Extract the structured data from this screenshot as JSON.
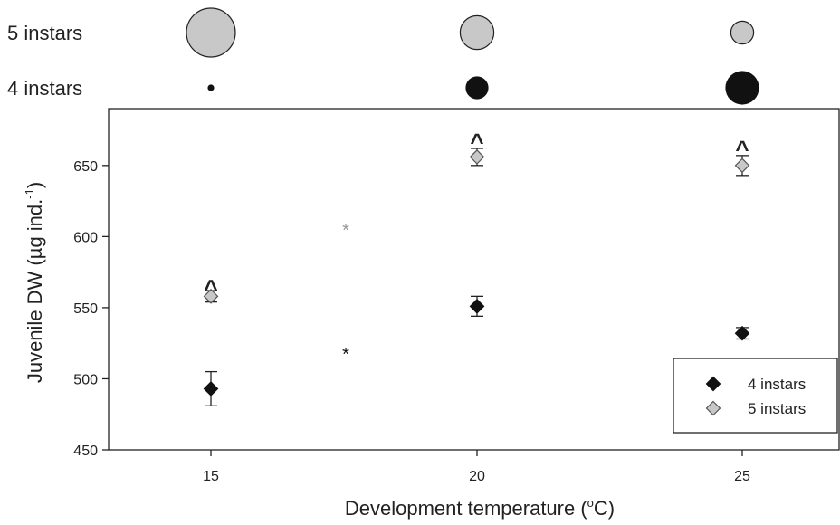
{
  "chart_data": {
    "type": "scatter",
    "xlabel": "Development temperature (",
    "xlabel_degree": "o",
    "xlabel_unit": "C)",
    "ylabel": "Juvenile DW (µg ind.",
    "ylabel_exp": "-1",
    "ylabel_end": ")",
    "ylim": [
      450,
      690
    ],
    "yticks": [
      450,
      500,
      550,
      600,
      650
    ],
    "x_categories": [
      "15",
      "20",
      "25"
    ],
    "series": [
      {
        "name": "4 instars",
        "color": "#111111",
        "marker": "diamond-filled",
        "values": [
          493,
          551,
          532
        ],
        "errors": [
          12,
          7,
          4
        ]
      },
      {
        "name": "5 instars",
        "color": "#c8c8c8",
        "marker": "diamond-light",
        "values": [
          558,
          656,
          650
        ],
        "errors": [
          4,
          6,
          7
        ]
      }
    ],
    "significance_marks": [
      {
        "text": "^",
        "x": "15",
        "y": 567
      },
      {
        "text": "^",
        "x": "20",
        "y": 670
      },
      {
        "text": "^",
        "x": "25",
        "y": 665
      }
    ],
    "asterisks": [
      {
        "text": "*",
        "between": [
          "15",
          "20"
        ],
        "y": 522,
        "color": "#111111"
      },
      {
        "text": "*",
        "between": [
          "15",
          "20"
        ],
        "y": 609,
        "color": "#999999"
      }
    ],
    "proportion_rows": [
      {
        "label": "5 instars",
        "color": "#c8c8c8",
        "sizes": [
          0.9,
          0.62,
          0.42
        ]
      },
      {
        "label": "4 instars",
        "color": "#111111",
        "sizes": [
          0.12,
          0.42,
          0.62
        ]
      }
    ],
    "legend_position": "bottom-right",
    "grid": false
  }
}
